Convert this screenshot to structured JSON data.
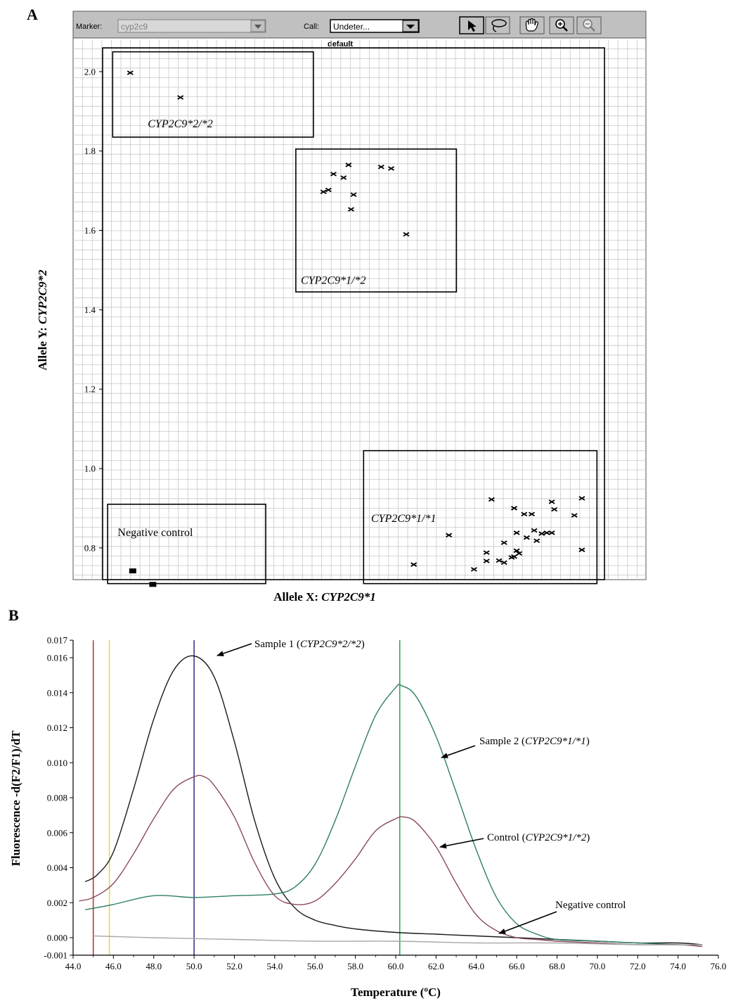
{
  "panel_a_letter": "A",
  "panel_b_letter": "B",
  "toolbar": {
    "marker_label": "Marker:",
    "marker_value": "cyp2c9",
    "call_label": "Call:",
    "call_value": "Undeter...",
    "tools": [
      "arrow-tool-icon",
      "lasso-tool-icon",
      "hand-tool-icon",
      "zoom-in-icon",
      "zoom-out-icon"
    ]
  },
  "colors": {
    "toolbar_bg": "#c0c0c0",
    "grid": "#c8c8c8",
    "curve_sample1": "#1a1a1a",
    "curve_sample2": "#2e7d6a",
    "curve_control": "#8a4a5a",
    "curve_negative": "#a8a8a8",
    "vline_red": "#c0392b",
    "vline_yellow": "#e6d84a",
    "vline_blue": "#3a3a8c",
    "vline_green": "#2ea84a"
  },
  "chart_data": [
    {
      "type": "scatter",
      "title": "default",
      "xlabel_prefix": "Allele X: ",
      "xlabel_gene": "CYP2C9*1",
      "ylabel_prefix": "Allele Y: ",
      "ylabel_gene": "CYP2C9*2",
      "ylim": [
        0.72,
        2.06
      ],
      "yticks": [
        0.8,
        1.0,
        1.2,
        1.4,
        1.6,
        1.8,
        2.0
      ],
      "yticklabels": [
        "0.8",
        "1.0",
        "1.2",
        "1.4",
        "1.6",
        "1.8",
        "2.0"
      ],
      "x_tick_labels_shown": false,
      "grid": true,
      "xlim": [
        0.0,
        1.0
      ],
      "clusters": [
        {
          "label": "CYP2C9*2/*2",
          "label_italic": true,
          "box": {
            "x0": 0.02,
            "x1": 0.42,
            "y0": 1.835,
            "y1": 2.05
          },
          "label_at": {
            "x": 0.09,
            "y": 1.86
          },
          "marker": "x",
          "points": [
            [
              0.055,
              1.997
            ],
            [
              0.155,
              1.935
            ]
          ]
        },
        {
          "label": "CYP2C9*1/*2",
          "label_italic": true,
          "box": {
            "x0": 0.385,
            "x1": 0.705,
            "y0": 1.445,
            "y1": 1.805
          },
          "label_at": {
            "x": 0.395,
            "y": 1.465
          },
          "marker": "x",
          "points": [
            [
              0.44,
              1.697
            ],
            [
              0.45,
              1.702
            ],
            [
              0.46,
              1.742
            ],
            [
              0.48,
              1.733
            ],
            [
              0.49,
              1.765
            ],
            [
              0.495,
              1.653
            ],
            [
              0.5,
              1.69
            ],
            [
              0.555,
              1.76
            ],
            [
              0.575,
              1.756
            ],
            [
              0.605,
              1.59
            ]
          ]
        },
        {
          "label": "CYP2C9*1/*1",
          "label_italic": true,
          "box": {
            "x0": 0.52,
            "x1": 0.985,
            "y0": 0.71,
            "y1": 1.045
          },
          "label_at": {
            "x": 0.535,
            "y": 0.865
          },
          "marker": "x",
          "points": [
            [
              0.62,
              0.758
            ],
            [
              0.69,
              0.832
            ],
            [
              0.74,
              0.746
            ],
            [
              0.765,
              0.767
            ],
            [
              0.765,
              0.788
            ],
            [
              0.775,
              0.922
            ],
            [
              0.79,
              0.768
            ],
            [
              0.8,
              0.763
            ],
            [
              0.8,
              0.813
            ],
            [
              0.815,
              0.776
            ],
            [
              0.82,
              0.778
            ],
            [
              0.82,
              0.9
            ],
            [
              0.825,
              0.838
            ],
            [
              0.825,
              0.793
            ],
            [
              0.83,
              0.786
            ],
            [
              0.84,
              0.885
            ],
            [
              0.845,
              0.826
            ],
            [
              0.855,
              0.885
            ],
            [
              0.86,
              0.844
            ],
            [
              0.865,
              0.818
            ],
            [
              0.875,
              0.836
            ],
            [
              0.885,
              0.838
            ],
            [
              0.895,
              0.838
            ],
            [
              0.895,
              0.916
            ],
            [
              0.9,
              0.897
            ],
            [
              0.94,
              0.882
            ],
            [
              0.955,
              0.925
            ],
            [
              0.955,
              0.795
            ]
          ]
        },
        {
          "label": "Negative control",
          "label_italic": false,
          "box": {
            "x0": 0.01,
            "x1": 0.325,
            "y0": 0.71,
            "y1": 0.91
          },
          "label_at": {
            "x": 0.03,
            "y": 0.83
          },
          "marker": "square",
          "points": [
            [
              0.06,
              0.742
            ],
            [
              0.1,
              0.708
            ]
          ]
        }
      ]
    },
    {
      "type": "line",
      "xlabel": "Temperature (ºC)",
      "ylabel": "Fluorescence -d(F2/F1)/dT",
      "xlim": [
        44.0,
        76.0
      ],
      "ylim": [
        -0.001,
        0.017
      ],
      "xticks": [
        44,
        46,
        48,
        50,
        52,
        54,
        56,
        58,
        60,
        62,
        64,
        66,
        68,
        70,
        72,
        74,
        76
      ],
      "xticklabels": [
        "44.0",
        "46.0",
        "48.0",
        "50.0",
        "52.0",
        "54.0",
        "56.0",
        "58.0",
        "60.0",
        "62.0",
        "64.0",
        "66.0",
        "68.0",
        "70.0",
        "72.0",
        "74.0",
        "76.0"
      ],
      "yticks": [
        -0.001,
        0.0,
        0.002,
        0.004,
        0.006,
        0.008,
        0.01,
        0.012,
        0.014,
        0.016,
        0.017
      ],
      "yticklabels": [
        "-0.001",
        "0.000",
        "0.002",
        "0.004",
        "0.006",
        "0.008",
        "0.010",
        "0.012",
        "0.014",
        "0.016",
        "0.017"
      ],
      "vertical_lines": [
        {
          "x": 45.0,
          "color": "#c0392b"
        },
        {
          "x": 45.8,
          "color": "#e6d84a"
        },
        {
          "x": 50.0,
          "color": "#3a3a8c"
        },
        {
          "x": 60.2,
          "color": "#2ea84a"
        }
      ],
      "series": [
        {
          "name": "Sample 1 (CYP2C9*2/*2)",
          "color": "#1a1a1a",
          "x": [
            44.6,
            45.2,
            46.0,
            47.0,
            48.0,
            49.0,
            50.0,
            51.0,
            52.0,
            53.0,
            54.0,
            55.0,
            56.0,
            57.0,
            58.0,
            60.0,
            62.0,
            64.0,
            66.0,
            68.0,
            70.0,
            72.0,
            74.0,
            75.2
          ],
          "y": [
            0.0032,
            0.0036,
            0.0049,
            0.0085,
            0.0125,
            0.0153,
            0.0161,
            0.0149,
            0.0112,
            0.0067,
            0.0034,
            0.0017,
            0.001,
            0.0007,
            0.0005,
            0.0003,
            0.0002,
            0.0001,
            0.0,
            -0.0001,
            -0.0002,
            -0.0003,
            -0.0003,
            -0.0004
          ]
        },
        {
          "name": "Sample 2 (CYP2C9*1/*1)",
          "color": "#2e7d6a",
          "x": [
            44.6,
            46.0,
            48.0,
            50.0,
            52.0,
            54.0,
            55.0,
            56.0,
            57.0,
            58.0,
            59.0,
            60.0,
            60.3,
            61.0,
            62.0,
            63.0,
            64.0,
            65.0,
            66.0,
            67.0,
            68.0,
            70.0,
            72.0,
            74.0,
            75.2
          ],
          "y": [
            0.0016,
            0.0019,
            0.0024,
            0.0023,
            0.0024,
            0.0025,
            0.0029,
            0.0042,
            0.0067,
            0.0098,
            0.0127,
            0.0143,
            0.0144,
            0.0138,
            0.0115,
            0.0083,
            0.005,
            0.0023,
            0.0008,
            0.0002,
            -0.0001,
            -0.0002,
            -0.0003,
            -0.0004,
            -0.0004
          ]
        },
        {
          "name": "Control (CYP2C9*1/*2)",
          "color": "#8a4a5a",
          "x": [
            44.3,
            45.0,
            46.0,
            47.0,
            48.0,
            49.0,
            50.0,
            50.5,
            51.0,
            52.0,
            53.0,
            54.0,
            55.0,
            56.0,
            57.0,
            58.0,
            59.0,
            60.0,
            60.4,
            61.0,
            62.0,
            63.0,
            64.0,
            65.0,
            66.0,
            67.0,
            68.0,
            70.0,
            72.0,
            74.0,
            75.2
          ],
          "y": [
            0.0021,
            0.0023,
            0.0031,
            0.0048,
            0.0068,
            0.0085,
            0.0092,
            0.0092,
            0.0087,
            0.0069,
            0.0043,
            0.0024,
            0.0019,
            0.0021,
            0.0031,
            0.0045,
            0.0061,
            0.0068,
            0.0069,
            0.0066,
            0.0052,
            0.0031,
            0.0013,
            0.0004,
            0.0,
            -0.0001,
            -0.0002,
            -0.0003,
            -0.0004,
            -0.0004,
            -0.0005
          ]
        },
        {
          "name": "Negative control",
          "color": "#a8a8a8",
          "x": [
            45.0,
            48.0,
            52.0,
            56.0,
            60.0,
            64.0,
            68.0,
            72.0,
            75.2
          ],
          "y": [
            0.0001,
            0.0,
            -0.0001,
            -0.0002,
            -0.0002,
            -0.0003,
            -0.0003,
            -0.0004,
            -0.0004
          ]
        }
      ],
      "annotations": [
        {
          "prefix": "Sample 1 (",
          "gene": "CYP2C9*2/*2",
          "suffix": ")"
        },
        {
          "prefix": "Sample 2 (",
          "gene": "CYP2C9*1/*1",
          "suffix": ")"
        },
        {
          "prefix": "Control (",
          "gene": "CYP2C9*1/*2",
          "suffix": ")"
        },
        {
          "prefix": "Negative control",
          "gene": "",
          "suffix": ""
        }
      ]
    }
  ]
}
